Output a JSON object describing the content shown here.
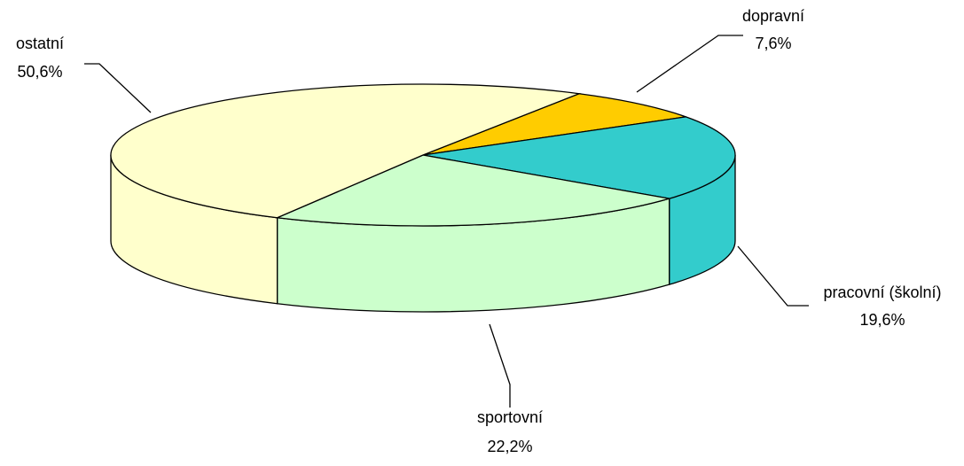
{
  "chart_data": {
    "type": "pie3d",
    "categories": [
      "dopravní",
      "pracovní (školní)",
      "sportovní",
      "ostatní"
    ],
    "values": [
      7.6,
      19.6,
      22.2,
      50.6
    ],
    "value_labels": [
      "7,6%",
      "19,6%",
      "22,2%",
      "50,6%"
    ],
    "colors": [
      "#ffcc00",
      "#33cccc",
      "#ccffcc",
      "#ffffcc"
    ]
  }
}
